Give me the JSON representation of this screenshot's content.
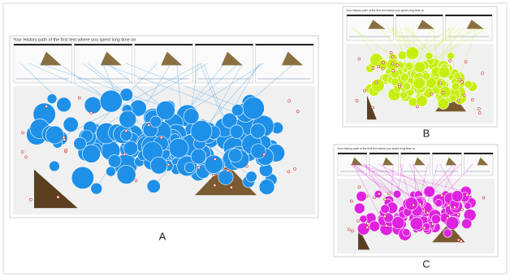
{
  "panels": [
    {
      "label": "A",
      "title": "Your History path of the first text where you spent long time on",
      "color": "#1e90e8"
    },
    {
      "label": "B",
      "title": "Your History path of the first text where you spent long time on",
      "color": "#c6ef10"
    },
    {
      "label": "C",
      "title": "Your History path of the first text where you spent long time on",
      "color": "#df22e0"
    }
  ]
}
